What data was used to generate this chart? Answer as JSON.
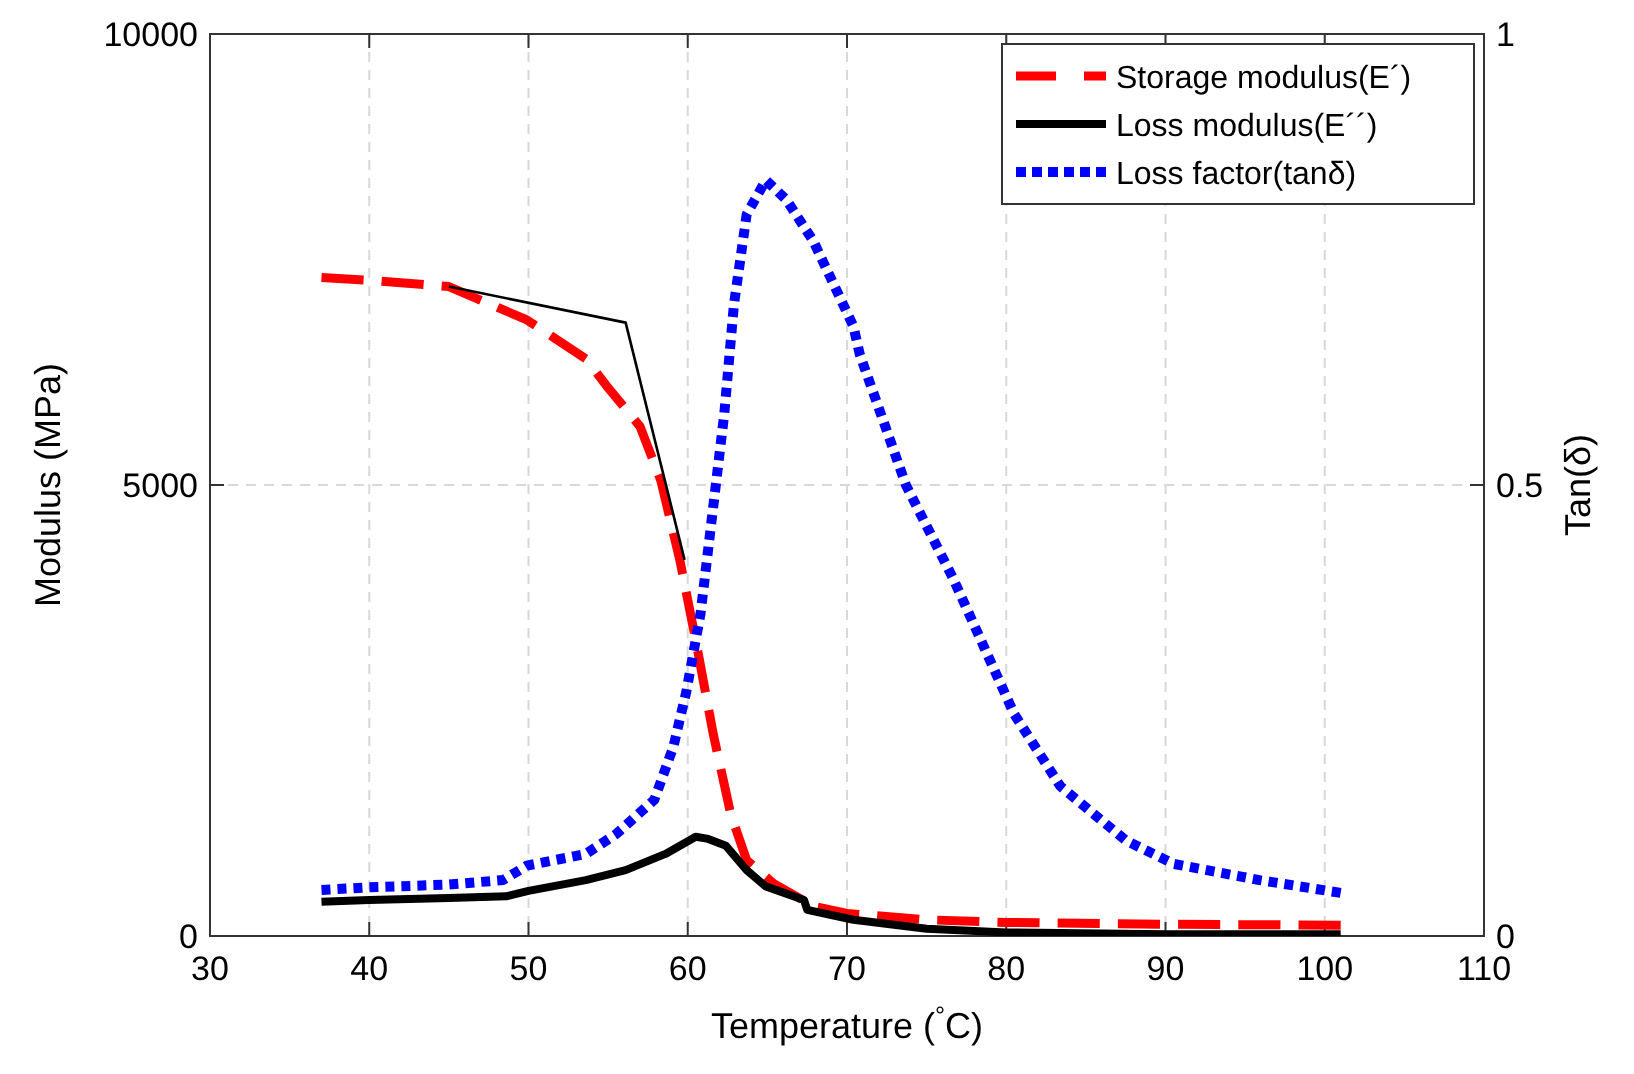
{
  "chart_data": {
    "type": "line",
    "xlabel": "Temperature ($^{°}$C)",
    "ylabel": "Modulus (MPa)",
    "y2label": "Tan(δ)",
    "xlim": [
      30,
      110
    ],
    "xticks": [
      30,
      40,
      50,
      60,
      70,
      80,
      90,
      100,
      110
    ],
    "ylim": [
      0,
      10000
    ],
    "yticks": [
      0,
      5000,
      10000
    ],
    "y2lim": [
      0,
      1
    ],
    "y2ticks": [
      0,
      0.5,
      1
    ],
    "grid": true,
    "legend": "top right",
    "series": [
      {
        "name": "Storage modulus(E´)",
        "color": "#ff0000",
        "line_style": "dashed",
        "x": [
          37,
          40,
          45,
          49.9,
          53.6,
          54.9,
          57,
          58.3,
          59.5,
          60.5,
          61.6,
          62.7,
          63.7,
          65.4,
          67.9,
          70,
          75,
          80,
          90,
          101
        ],
        "values": [
          7300,
          7270,
          7200,
          6830,
          6400,
          6100,
          5650,
          5055,
          4170,
          3280,
          2240,
          1350,
          840,
          580,
          330,
          250,
          180,
          150,
          130,
          120
        ]
      },
      {
        "name": "Loss modulus(E´´)",
        "color": "#000000",
        "line_style": "solid",
        "x": [
          37,
          40,
          45,
          48.6,
          50,
          53.6,
          56.1,
          58.6,
          60.5,
          61.2,
          62.4,
          63.7,
          64.9,
          67.3,
          67.5,
          70.4,
          75,
          80,
          90,
          101
        ],
        "values": [
          380,
          400,
          420,
          440,
          500,
          620,
          730,
          910,
          1100,
          1080,
          1000,
          730,
          550,
          400,
          290,
          180,
          80,
          40,
          20,
          20
        ]
      },
      {
        "name": "Loss factor(tanδ)",
        "color": "#0000ff",
        "line_style": "dotted",
        "axis": "y2",
        "x": [
          37,
          40,
          45,
          48.4,
          49.9,
          53.6,
          55.5,
          57.9,
          59.1,
          59.9,
          60.8,
          61.6,
          62.3,
          62.9,
          63.7,
          64.9,
          66.2,
          67.9,
          70.4,
          70.8,
          73.7,
          76.7,
          80.5,
          83.4,
          87.5,
          90.5,
          95.9,
          101.3
        ],
        "values": [
          0.051,
          0.054,
          0.057,
          0.062,
          0.078,
          0.091,
          0.113,
          0.151,
          0.21,
          0.27,
          0.357,
          0.476,
          0.58,
          0.7,
          0.8,
          0.838,
          0.816,
          0.77,
          0.676,
          0.645,
          0.5,
          0.395,
          0.246,
          0.166,
          0.106,
          0.08,
          0.062,
          0.047
        ]
      },
      {
        "color": "#000000",
        "line_style": "solid",
        "x": [
          45,
          56.1,
          59.8
        ],
        "values": [
          7200,
          6800,
          4170
        ]
      }
    ]
  }
}
